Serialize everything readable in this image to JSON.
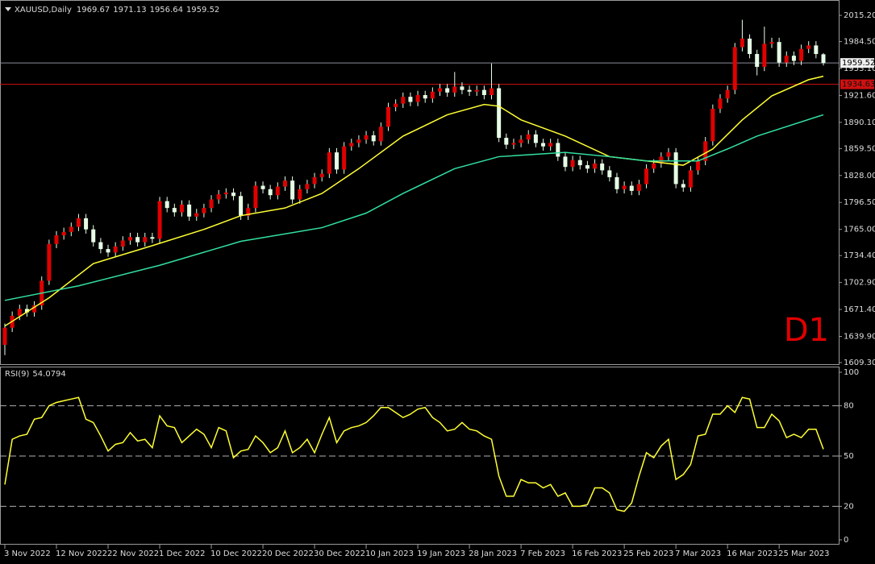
{
  "chart_data": [
    {
      "type": "candlestick",
      "title": "XAUUSD,Daily",
      "annotation": "D1",
      "categories": [
        "3 Nov 2022",
        null,
        null,
        null,
        null,
        null,
        null,
        "12 Nov 2022",
        null,
        null,
        null,
        null,
        null,
        null,
        "22 Nov 2022",
        null,
        null,
        null,
        null,
        null,
        null,
        "1 Dec 2022",
        null,
        null,
        null,
        null,
        null,
        null,
        "10 Dec 2022",
        null,
        null,
        null,
        null,
        null,
        null,
        "20 Dec 2022",
        null,
        null,
        null,
        null,
        null,
        null,
        "30 Dec 2022",
        null,
        null,
        null,
        null,
        null,
        null,
        "10 Jan 2023",
        null,
        null,
        null,
        null,
        null,
        null,
        "19 Jan 2023",
        null,
        null,
        null,
        null,
        null,
        null,
        "28 Jan 2023",
        null,
        null,
        null,
        null,
        null,
        null,
        "7 Feb 2023",
        null,
        null,
        null,
        null,
        null,
        null,
        "16 Feb 2023",
        null,
        null,
        null,
        null,
        null,
        null,
        "25 Feb 2023",
        null,
        null,
        null,
        null,
        null,
        null,
        "7 Mar 2023",
        null,
        null,
        null,
        null,
        null,
        null,
        "16 Mar 2023",
        null,
        null,
        null,
        null,
        null,
        null,
        "25 Mar 2023",
        null,
        null,
        null,
        null,
        null,
        null
      ],
      "open": [
        1630,
        1650,
        1664,
        1672,
        1668,
        1676,
        1705,
        1748,
        1758,
        1762,
        1768,
        1778,
        1765,
        1750,
        1742,
        1738,
        1745,
        1752,
        1756,
        1750,
        1756,
        1754,
        1798,
        1790,
        1785,
        1794,
        1780,
        1784,
        1790,
        1800,
        1806,
        1808,
        1804,
        1781,
        1790,
        1816,
        1812,
        1805,
        1815,
        1822,
        1800,
        1812,
        1818,
        1826,
        1830,
        1855,
        1835,
        1862,
        1866,
        1870,
        1875,
        1868,
        1885,
        1908,
        1912,
        1920,
        1914,
        1922,
        1918,
        1926,
        1930,
        1925,
        1932,
        1928,
        1926,
        1928,
        1922,
        1930,
        1872,
        1864,
        1866,
        1870,
        1876,
        1866,
        1862,
        1866,
        1850,
        1838,
        1846,
        1840,
        1836,
        1842,
        1834,
        1826,
        1812,
        1816,
        1810,
        1818,
        1836,
        1842,
        1850,
        1855,
        1818,
        1814,
        1834,
        1845,
        1868,
        1906,
        1918,
        1928,
        1978,
        1988,
        1970,
        1955,
        1982,
        1984,
        1960,
        1968,
        1962,
        1976,
        1980,
        1969.67
      ],
      "high": [
        1655,
        1669,
        1677,
        1677,
        1681,
        1710,
        1753,
        1763,
        1767,
        1773,
        1783,
        1783,
        1770,
        1755,
        1747,
        1750,
        1757,
        1761,
        1761,
        1761,
        1761,
        1803,
        1803,
        1795,
        1799,
        1799,
        1789,
        1795,
        1805,
        1811,
        1813,
        1813,
        1809,
        1795,
        1821,
        1821,
        1817,
        1820,
        1827,
        1827,
        1817,
        1823,
        1831,
        1835,
        1860,
        1860,
        1867,
        1871,
        1875,
        1880,
        1880,
        1890,
        1913,
        1917,
        1925,
        1925,
        1927,
        1927,
        1931,
        1935,
        1935,
        1949,
        1937,
        1933,
        1933,
        1933,
        1959,
        1935,
        1877,
        1871,
        1875,
        1881,
        1881,
        1871,
        1871,
        1871,
        1855,
        1851,
        1851,
        1845,
        1847,
        1847,
        1839,
        1831,
        1821,
        1821,
        1823,
        1841,
        1847,
        1855,
        1860,
        1860,
        1823,
        1839,
        1850,
        1873,
        1911,
        1923,
        1933,
        1983,
        2010,
        1993,
        1975,
        2002,
        1989,
        1989,
        1973,
        1973,
        1981,
        1985,
        1985,
        1971.13
      ],
      "low": [
        1618,
        1645,
        1659,
        1663,
        1663,
        1671,
        1700,
        1743,
        1753,
        1757,
        1763,
        1760,
        1745,
        1737,
        1733,
        1733,
        1740,
        1747,
        1745,
        1745,
        1749,
        1749,
        1785,
        1780,
        1780,
        1775,
        1775,
        1779,
        1785,
        1795,
        1801,
        1799,
        1776,
        1776,
        1785,
        1807,
        1800,
        1800,
        1810,
        1795,
        1795,
        1807,
        1813,
        1821,
        1825,
        1830,
        1830,
        1857,
        1861,
        1865,
        1863,
        1863,
        1880,
        1903,
        1907,
        1909,
        1909,
        1913,
        1913,
        1921,
        1920,
        1920,
        1923,
        1921,
        1921,
        1917,
        1917,
        1867,
        1859,
        1859,
        1861,
        1865,
        1861,
        1857,
        1857,
        1845,
        1833,
        1833,
        1835,
        1831,
        1831,
        1829,
        1821,
        1807,
        1807,
        1805,
        1805,
        1813,
        1831,
        1837,
        1845,
        1813,
        1809,
        1809,
        1829,
        1840,
        1863,
        1901,
        1913,
        1923,
        1973,
        1965,
        1945,
        1950,
        1977,
        1955,
        1955,
        1957,
        1957,
        1971,
        1965,
        1956.64
      ],
      "close": [
        1650,
        1664,
        1672,
        1668,
        1676,
        1705,
        1748,
        1758,
        1762,
        1768,
        1778,
        1765,
        1750,
        1742,
        1738,
        1745,
        1752,
        1756,
        1750,
        1756,
        1754,
        1798,
        1790,
        1785,
        1794,
        1780,
        1784,
        1790,
        1800,
        1806,
        1808,
        1804,
        1781,
        1790,
        1816,
        1812,
        1805,
        1815,
        1822,
        1800,
        1812,
        1818,
        1826,
        1830,
        1855,
        1835,
        1862,
        1866,
        1870,
        1875,
        1868,
        1885,
        1908,
        1912,
        1920,
        1914,
        1922,
        1918,
        1926,
        1930,
        1925,
        1932,
        1928,
        1926,
        1928,
        1922,
        1930,
        1872,
        1864,
        1866,
        1870,
        1876,
        1866,
        1862,
        1866,
        1850,
        1838,
        1846,
        1840,
        1836,
        1842,
        1834,
        1826,
        1812,
        1816,
        1810,
        1818,
        1836,
        1842,
        1850,
        1855,
        1818,
        1814,
        1834,
        1845,
        1868,
        1906,
        1918,
        1928,
        1978,
        1988,
        1970,
        1955,
        1982,
        1984,
        1960,
        1968,
        1962,
        1976,
        1980,
        1970,
        1959.52
      ],
      "up_color": "#e00000",
      "down_color": "#e6ffe6",
      "wick_color": "#e6ffe6",
      "series": [
        {
          "color": "#ffff33",
          "x": [
            0,
            6,
            12,
            20,
            27,
            32,
            38,
            43,
            48,
            54,
            60,
            65,
            67,
            70,
            76,
            82,
            87,
            92,
            96,
            100,
            104,
            109,
            111
          ],
          "values": [
            1652,
            1685,
            1725,
            1746,
            1765,
            1781,
            1790,
            1807,
            1836,
            1874,
            1899,
            1911,
            1909,
            1893,
            1874,
            1850,
            1845,
            1840,
            1859,
            1893,
            1921,
            1940,
            1944
          ]
        },
        {
          "color": "#33e0a0",
          "x": [
            0,
            10,
            21,
            32,
            43,
            49,
            54,
            61,
            67,
            76,
            82,
            87,
            94,
            98,
            102,
            111
          ],
          "values": [
            1682,
            1699,
            1723,
            1751,
            1767,
            1784,
            1807,
            1836,
            1850,
            1855,
            1850,
            1845,
            1845,
            1859,
            1874,
            1899
          ]
        }
      ],
      "ylim": [
        1607.4,
        2032.2
      ],
      "yticks": [
        {
          "value": 2015.2,
          "label": "2015.20"
        },
        {
          "value": 1984.5,
          "label": "1984.50"
        },
        {
          "value": 1953.1,
          "label": "1953.10"
        },
        {
          "value": 1921.6,
          "label": "1921.60"
        },
        {
          "value": 1890.1,
          "label": "1890.10"
        },
        {
          "value": 1859.5,
          "label": "1859.50"
        },
        {
          "value": 1828,
          "label": "1828.00"
        },
        {
          "value": 1796.5,
          "label": "1796.50"
        },
        {
          "value": 1765,
          "label": "1765.00"
        },
        {
          "value": 1734.4,
          "label": "1734.40"
        },
        {
          "value": 1702.9,
          "label": "1702.90"
        },
        {
          "value": 1671.4,
          "label": "1671.40"
        },
        {
          "value": 1639.9,
          "label": "1639.90"
        },
        {
          "value": 1609.3,
          "label": "1609.30"
        }
      ],
      "levels": [
        {
          "value": 1934.63,
          "color": "#d01010"
        }
      ]
    },
    {
      "type": "line",
      "title": "RSI(9)",
      "color": "#ffff33",
      "values": [
        33,
        60,
        62,
        63,
        72,
        73,
        80,
        82,
        83,
        84,
        85,
        72,
        70,
        62,
        53,
        57,
        58,
        64,
        59,
        60,
        55,
        74,
        68,
        67,
        58,
        62,
        66,
        63,
        55,
        67,
        65,
        49,
        53,
        54,
        62,
        58,
        52,
        55,
        65,
        52,
        55,
        60,
        52,
        63,
        73,
        58,
        65,
        67,
        68,
        70,
        74,
        79,
        79,
        76,
        73,
        75,
        78,
        79,
        73,
        70,
        65,
        66,
        70,
        66,
        65,
        62,
        60,
        38,
        26,
        26,
        36,
        34,
        34,
        31,
        33,
        26,
        28,
        20,
        20,
        21,
        31,
        31,
        28,
        18,
        17,
        22,
        38,
        52,
        49,
        56,
        60,
        36,
        39,
        45,
        62,
        63,
        75,
        75,
        80,
        76,
        85,
        84,
        67,
        67,
        75,
        71,
        61,
        63,
        61,
        66,
        66,
        54.0794
      ],
      "ylim": [
        -2.4,
        102.9
      ],
      "yticks": [
        0,
        20,
        50,
        80,
        100
      ],
      "levels": [
        20,
        50,
        80
      ]
    }
  ]
}
